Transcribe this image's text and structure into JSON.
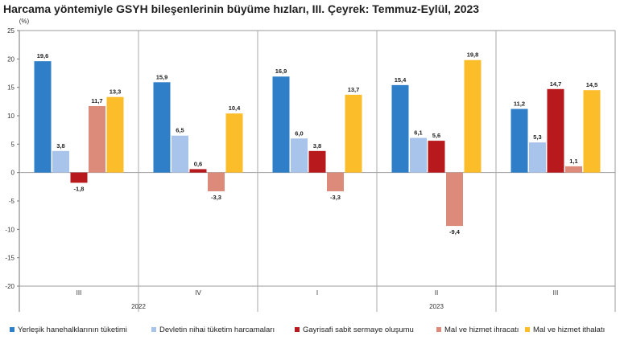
{
  "chart_data": {
    "type": "bar",
    "title": "Harcama yöntemiyle GSYH bileşenlerinin büyüme hızları, III. Çeyrek: Temmuz-Eylül, 2023",
    "ylabel": "(%)",
    "ylim": [
      -20,
      25
    ],
    "yticks": [
      25,
      20,
      15,
      10,
      5,
      0,
      -5,
      -10,
      -15,
      -20
    ],
    "categories": [
      "III",
      "IV",
      "I",
      "II",
      "III"
    ],
    "year_groups": [
      {
        "label": "2022",
        "categories": [
          0,
          1
        ]
      },
      {
        "label": "2023",
        "categories": [
          2,
          3,
          4
        ]
      }
    ],
    "series": [
      {
        "name": "Yerleşik hanehalklarının tüketimi",
        "color": "#2e7fc8",
        "values": [
          19.6,
          15.9,
          16.9,
          15.4,
          11.2
        ],
        "labels": [
          "19,6",
          "15,9",
          "16,9",
          "15,4",
          "11,2"
        ]
      },
      {
        "name": "Devletin nihai tüketim harcamaları",
        "color": "#a9c4ea",
        "values": [
          3.8,
          6.5,
          6.0,
          6.1,
          5.3
        ],
        "labels": [
          "3,8",
          "6,5",
          "6,0",
          "6,1",
          "5,3"
        ]
      },
      {
        "name": "Gayrisafi sabit sermaye oluşumu",
        "color": "#b7191d",
        "values": [
          -1.8,
          0.6,
          3.8,
          5.6,
          14.7
        ],
        "labels": [
          "-1,8",
          "0,6",
          "3,8",
          "5,6",
          "14,7"
        ]
      },
      {
        "name": "Mal ve hizmet ihracatı",
        "color": "#dc8b7b",
        "values": [
          11.7,
          -3.3,
          -3.3,
          -9.4,
          1.1
        ],
        "labels": [
          "11,7",
          "-3,3",
          "-3,3",
          "-9,4",
          "1,1"
        ]
      },
      {
        "name": "Mal ve hizmet ithalatı",
        "color": "#fcbd2a",
        "values": [
          13.3,
          10.4,
          13.7,
          19.8,
          14.5
        ],
        "labels": [
          "13,3",
          "10,4",
          "13,7",
          "19,8",
          "14,5"
        ]
      }
    ],
    "grid": false,
    "legend": "bottom"
  }
}
